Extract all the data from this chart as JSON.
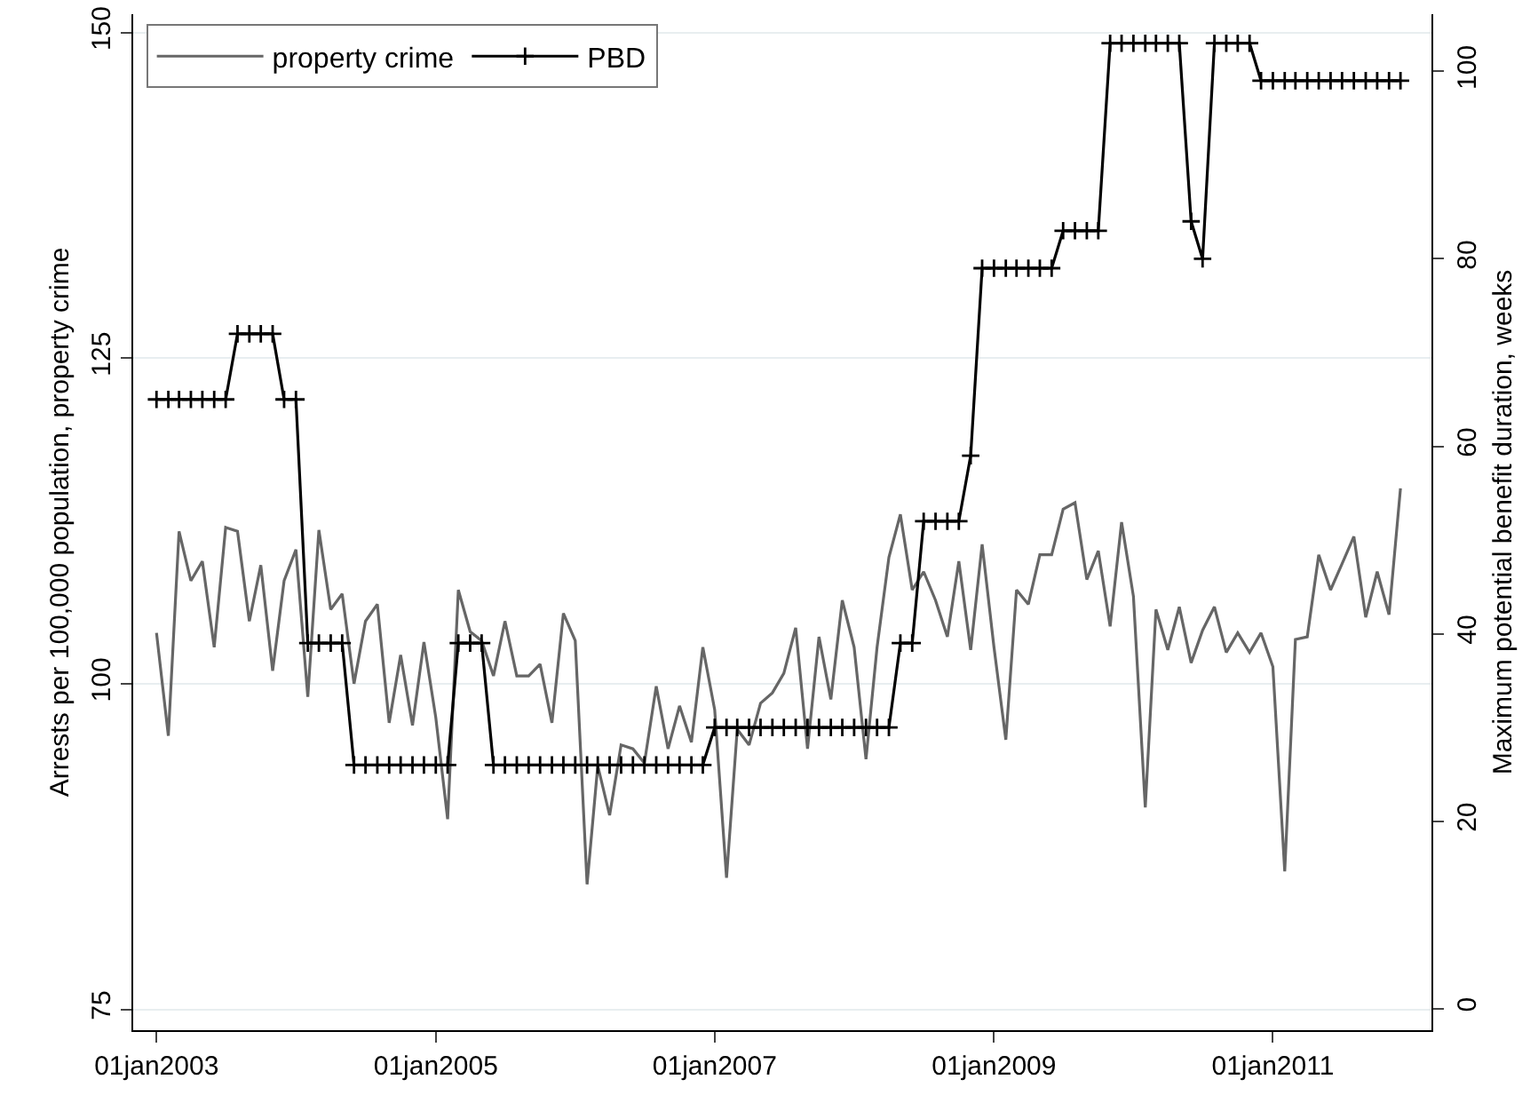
{
  "chart_data": {
    "type": "line",
    "ylabel": "Arrests per 100,000 population, property crime",
    "y2label": "Maximum potential benefit duration, weeks",
    "x": [
      "2003-01",
      "2003-02",
      "2003-03",
      "2003-04",
      "2003-05",
      "2003-06",
      "2003-07",
      "2003-08",
      "2003-09",
      "2003-10",
      "2003-11",
      "2003-12",
      "2004-01",
      "2004-02",
      "2004-03",
      "2004-04",
      "2004-05",
      "2004-06",
      "2004-07",
      "2004-08",
      "2004-09",
      "2004-10",
      "2004-11",
      "2004-12",
      "2005-01",
      "2005-02",
      "2005-03",
      "2005-04",
      "2005-05",
      "2005-06",
      "2005-07",
      "2005-08",
      "2005-09",
      "2005-10",
      "2005-11",
      "2005-12",
      "2006-01",
      "2006-02",
      "2006-03",
      "2006-04",
      "2006-05",
      "2006-06",
      "2006-07",
      "2006-08",
      "2006-09",
      "2006-10",
      "2006-11",
      "2006-12",
      "2007-01",
      "2007-02",
      "2007-03",
      "2007-04",
      "2007-05",
      "2007-06",
      "2007-07",
      "2007-08",
      "2007-09",
      "2007-10",
      "2007-11",
      "2007-12",
      "2008-01",
      "2008-02",
      "2008-03",
      "2008-04",
      "2008-05",
      "2008-06",
      "2008-07",
      "2008-08",
      "2008-09",
      "2008-10",
      "2008-11",
      "2008-12",
      "2009-01",
      "2009-02",
      "2009-03",
      "2009-04",
      "2009-05",
      "2009-06",
      "2009-07",
      "2009-08",
      "2009-09",
      "2009-10",
      "2009-11",
      "2009-12",
      "2010-01",
      "2010-02",
      "2010-03",
      "2010-04",
      "2010-05",
      "2010-06",
      "2010-07",
      "2010-08",
      "2010-09",
      "2010-10",
      "2010-11",
      "2010-12",
      "2011-01",
      "2011-02",
      "2011-03",
      "2011-04",
      "2011-05",
      "2011-06",
      "2011-07",
      "2011-08",
      "2011-09",
      "2011-10",
      "2011-11",
      "2011-12"
    ],
    "series": [
      {
        "name": "property crime",
        "color": "#666666",
        "marker": "none",
        "values": [
          103.9,
          96.0,
          111.7,
          107.9,
          109.4,
          102.8,
          112.0,
          111.7,
          104.8,
          109.1,
          101.0,
          107.9,
          110.3,
          99.0,
          111.8,
          105.7,
          106.9,
          100.0,
          104.8,
          106.1,
          97.0,
          102.2,
          96.8,
          103.2,
          97.4,
          89.6,
          107.2,
          104.0,
          103.3,
          100.6,
          104.8,
          100.6,
          100.6,
          101.5,
          97.0,
          105.4,
          103.3,
          84.6,
          93.7,
          89.9,
          95.3,
          95.0,
          93.9,
          99.8,
          95.0,
          98.3,
          95.5,
          102.8,
          98.0,
          85.1,
          96.5,
          95.3,
          98.5,
          99.3,
          100.8,
          104.3,
          95.0,
          103.6,
          98.8,
          106.4,
          102.8,
          94.2,
          102.8,
          109.7,
          113.0,
          107.2,
          108.6,
          106.4,
          103.6,
          109.4,
          102.6,
          110.7,
          102.8,
          95.7,
          107.2,
          106.1,
          109.9,
          109.9,
          113.4,
          113.9,
          108.0,
          110.2,
          104.4,
          112.4,
          106.7,
          90.5,
          105.7,
          102.6,
          105.9,
          101.6,
          104.1,
          105.9,
          102.4,
          103.9,
          102.4,
          103.9,
          101.3,
          85.6,
          103.4,
          103.6,
          109.9,
          107.2,
          109.2,
          111.3,
          105.1,
          108.6,
          105.3,
          115.0
        ]
      },
      {
        "name": "PBD",
        "color": "#000000",
        "marker": "cross",
        "axis": "y2",
        "values": [
          65,
          65,
          65,
          65,
          65,
          65,
          65,
          72,
          72,
          72,
          72,
          65,
          65,
          39,
          39,
          39,
          39,
          26,
          26,
          26,
          26,
          26,
          26,
          26,
          26,
          26,
          39,
          39,
          39,
          26,
          26,
          26,
          26,
          26,
          26,
          26,
          26,
          26,
          26,
          26,
          26,
          26,
          26,
          26,
          26,
          26,
          26,
          26,
          30,
          30,
          30,
          30,
          30,
          30,
          30,
          30,
          30,
          30,
          30,
          30,
          30,
          30,
          30,
          30,
          39,
          39,
          52,
          52,
          52,
          52,
          59,
          79,
          79,
          79,
          79,
          79,
          79,
          79,
          83,
          83,
          83,
          83,
          103,
          103,
          103,
          103,
          103,
          103,
          103,
          84,
          80,
          103,
          103,
          103,
          103,
          99,
          99,
          99,
          99,
          99,
          99,
          99,
          99,
          99,
          99,
          99,
          99,
          99
        ]
      }
    ],
    "xlim": [
      "2002-11-01",
      "2012-02-20"
    ],
    "xticks": [
      {
        "value": "2003-01-01",
        "label": "01jan2003"
      },
      {
        "value": "2005-01-01",
        "label": "01jan2005"
      },
      {
        "value": "2007-01-01",
        "label": "01jan2007"
      },
      {
        "value": "2009-01-01",
        "label": "01jan2009"
      },
      {
        "value": "2011-01-01",
        "label": "01jan2011"
      }
    ],
    "ylim": [
      73.4,
      151.4
    ],
    "yticks": [
      75,
      100,
      125,
      150
    ],
    "y2lim": [
      -2.3,
      106.1
    ],
    "y2ticks": [
      0,
      20,
      40,
      60,
      80,
      100
    ],
    "grid": "y",
    "legend": "top left",
    "line_style": "solid"
  }
}
